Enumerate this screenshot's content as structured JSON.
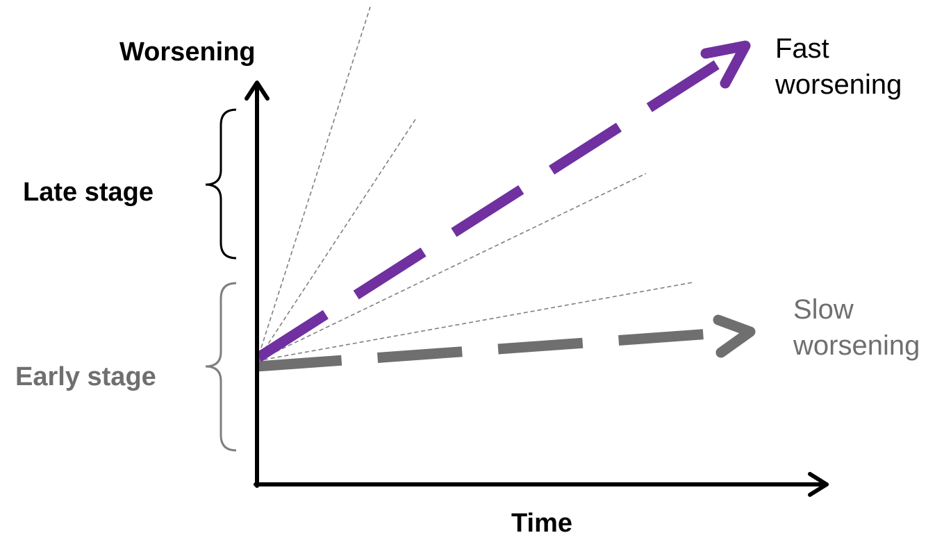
{
  "axes": {
    "y_label": "Worsening",
    "x_label": "Time"
  },
  "stages": {
    "late": "Late stage",
    "early": "Early stage"
  },
  "trajectories": {
    "fast": {
      "label": "Fast\nworsening",
      "color": "#7030a0"
    },
    "slow": {
      "label": "Slow\nworsening",
      "color": "#6f6f6f"
    }
  },
  "colors": {
    "axis": "#000000",
    "late_bracket": "#000000",
    "early_bracket": "#7f7f7f",
    "guide_lines": "#7f7f7f"
  }
}
